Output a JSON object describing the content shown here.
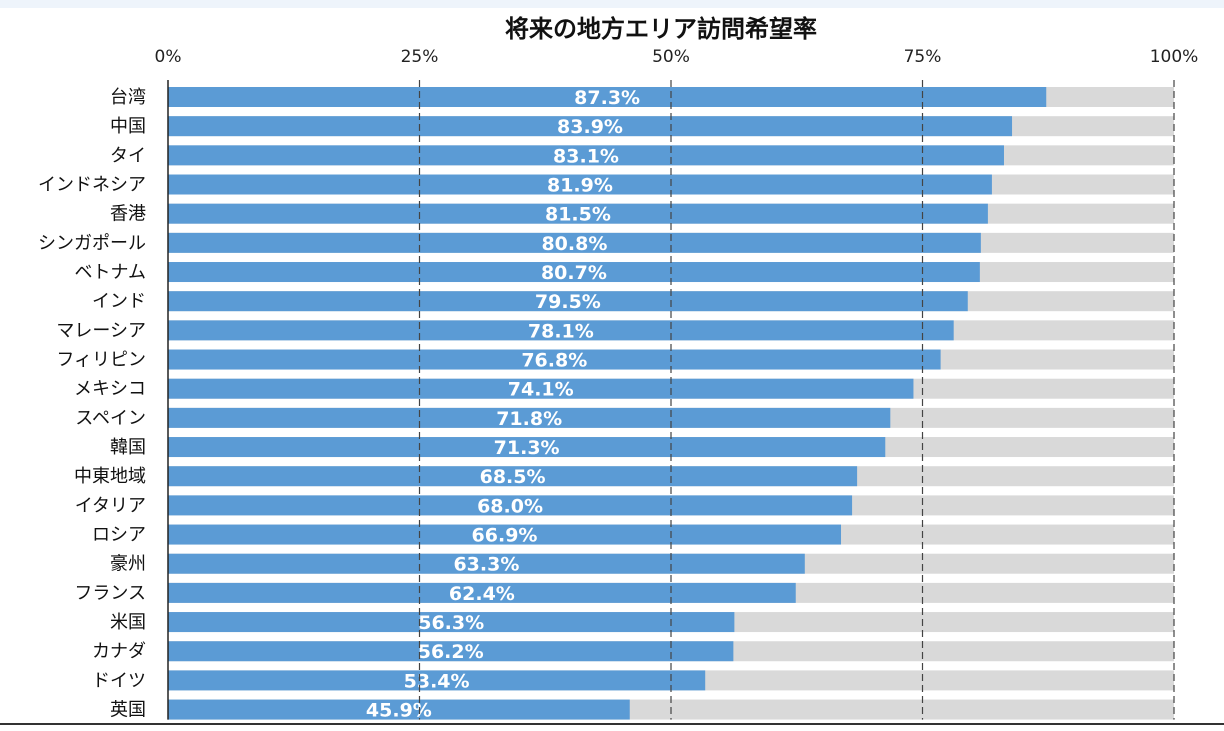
{
  "chart_data": {
    "type": "bar",
    "orientation": "horizontal",
    "stacked_to_100": true,
    "title": "将来の地方エリア訪問希望率",
    "categories": [
      "台湾",
      "中国",
      "タイ",
      "インドネシア",
      "香港",
      "シンガポール",
      "ベトナム",
      "インド",
      "マレーシア",
      "フィリピン",
      "メキシコ",
      "スペイン",
      "韓国",
      "中東地域",
      "イタリア",
      "ロシア",
      "豪州",
      "フランス",
      "米国",
      "カナダ",
      "ドイツ",
      "英国"
    ],
    "values": [
      87.3,
      83.9,
      83.1,
      81.9,
      81.5,
      80.8,
      80.7,
      79.5,
      78.1,
      76.8,
      74.1,
      71.8,
      71.3,
      68.5,
      68.0,
      66.9,
      63.3,
      62.4,
      56.3,
      56.2,
      53.4,
      45.9
    ],
    "value_labels": [
      "87.3%",
      "83.9%",
      "83.1%",
      "81.9%",
      "81.5%",
      "80.8%",
      "80.7%",
      "79.5%",
      "78.1%",
      "76.8%",
      "74.1%",
      "71.8%",
      "71.3%",
      "68.5%",
      "68.0%",
      "66.9%",
      "63.3%",
      "62.4%",
      "56.3%",
      "56.2%",
      "53.4%",
      "45.9%"
    ],
    "xlim": [
      0,
      100
    ],
    "x_ticks": [
      0,
      25,
      50,
      75,
      100
    ],
    "x_tick_labels": [
      "0%",
      "25%",
      "50%",
      "75%",
      "100%"
    ],
    "x_axis_position": "top",
    "grid": "vertical dashed",
    "legend": "none",
    "colors": {
      "bar": "#5b9bd5",
      "remainder": "#d9d9d9",
      "value_label": "#ffffff",
      "grid": "#444444"
    }
  }
}
